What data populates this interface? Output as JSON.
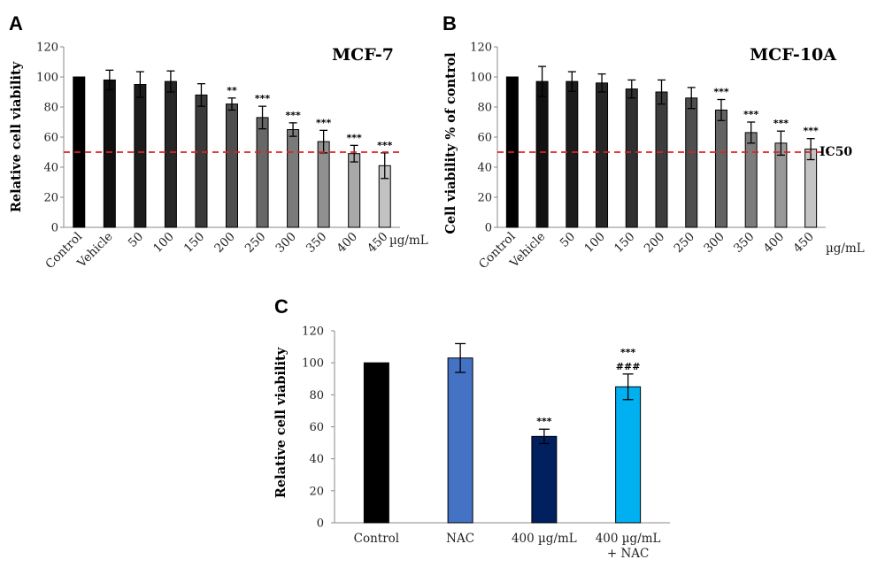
{
  "chart_data": [
    {
      "type": "bar",
      "panel": "A",
      "title": "MCF-7",
      "ylabel": "Relative cell viability",
      "unit_label": "µg/mL",
      "categories": [
        "Control",
        "Vehicle",
        "50",
        "100",
        "150",
        "200",
        "250",
        "300",
        "350",
        "400",
        "450"
      ],
      "values": [
        100,
        98,
        95,
        97,
        88,
        82,
        73,
        65,
        57,
        49,
        41
      ],
      "errors": [
        0,
        6.5,
        8.5,
        7,
        7.5,
        4,
        7.5,
        4.5,
        7.5,
        5.5,
        8.5
      ],
      "significance": [
        "",
        "",
        "",
        "",
        "",
        "**",
        "***",
        "***",
        "***",
        "***",
        "***"
      ],
      "colors": [
        "#000000",
        "#111111",
        "#1c1c1c",
        "#262626",
        "#3a3a3a",
        "#4e4e4e",
        "#676767",
        "#7a7a7a",
        "#909090",
        "#a8a8a8",
        "#c2c2c2"
      ],
      "ylim": [
        0,
        120
      ],
      "yticks": [
        0,
        20,
        40,
        60,
        80,
        100,
        120
      ],
      "reference_line": {
        "y": 50,
        "color": "#e02020"
      }
    },
    {
      "type": "bar",
      "panel": "B",
      "title": "MCF-10A",
      "ylabel": "Cell viability % of control",
      "unit_label": "µg/mL",
      "annotation": "IC50",
      "categories": [
        "Control",
        "Vehicle",
        "50",
        "100",
        "150",
        "200",
        "250",
        "300",
        "350",
        "400",
        "450"
      ],
      "values": [
        100,
        97,
        97,
        96,
        92,
        90,
        86,
        78,
        63,
        56,
        52
      ],
      "errors": [
        0,
        10,
        6.5,
        6,
        6,
        8,
        7,
        7,
        7,
        8,
        7
      ],
      "significance": [
        "",
        "",
        "",
        "",
        "",
        "",
        "",
        "***",
        "***",
        "***",
        "***"
      ],
      "colors": [
        "#000000",
        "#111111",
        "#1c1c1c",
        "#262626",
        "#303030",
        "#3c3c3c",
        "#4e4e4e",
        "#636363",
        "#7c7c7c",
        "#989898",
        "#c4c4c4"
      ],
      "ylim": [
        0,
        120
      ],
      "yticks": [
        0,
        20,
        40,
        60,
        80,
        100,
        120
      ],
      "reference_line": {
        "y": 50,
        "color": "#e02020"
      }
    },
    {
      "type": "bar",
      "panel": "C",
      "ylabel": "Relative cell viability",
      "categories": [
        [
          "Control"
        ],
        [
          "NAC"
        ],
        [
          "400 µg/mL"
        ],
        [
          "400 µg/mL",
          "+ NAC"
        ]
      ],
      "values": [
        100,
        103,
        54,
        85
      ],
      "errors": [
        0,
        9,
        4.5,
        8
      ],
      "significance": [
        [],
        [],
        [
          "***"
        ],
        [
          "***",
          "###"
        ]
      ],
      "colors": [
        "#000000",
        "#4472c4",
        "#002060",
        "#00b0f0"
      ],
      "ylim": [
        0,
        120
      ],
      "yticks": [
        0,
        20,
        40,
        60,
        80,
        100,
        120
      ]
    }
  ]
}
